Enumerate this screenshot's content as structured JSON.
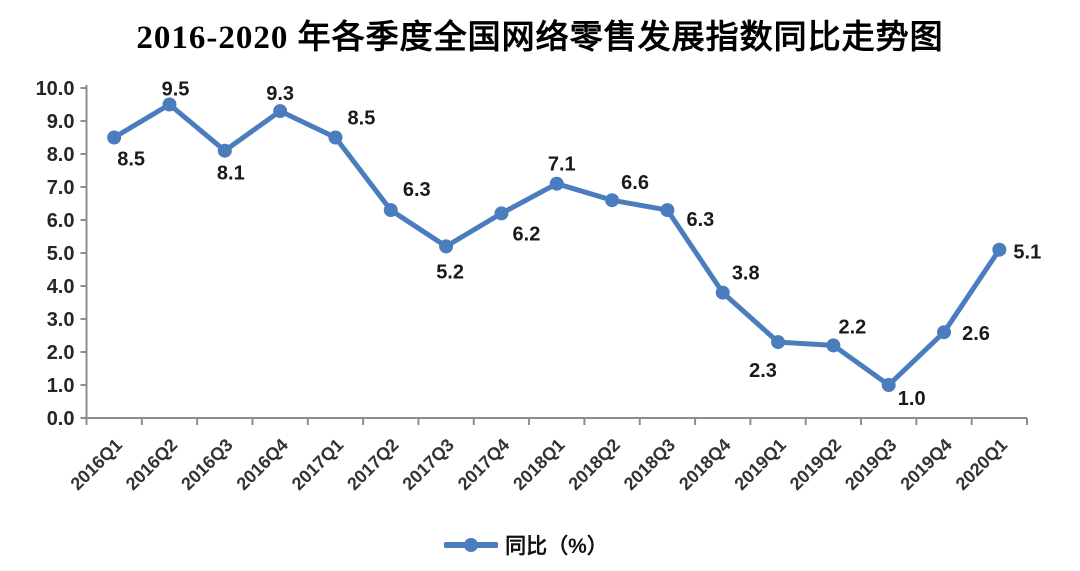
{
  "chart_data": {
    "type": "line",
    "title": "2016-2020 年各季度全国网络零售发展指数同比走势图",
    "categories": [
      "2016Q1",
      "2016Q2",
      "2016Q3",
      "2016Q4",
      "2017Q1",
      "2017Q2",
      "2017Q3",
      "2017Q4",
      "2018Q1",
      "2018Q2",
      "2018Q3",
      "2018Q4",
      "2019Q1",
      "2019Q2",
      "2019Q3",
      "2019Q4",
      "2020Q1"
    ],
    "series": [
      {
        "name": "同比（%）",
        "values": [
          8.5,
          9.5,
          8.1,
          9.3,
          8.5,
          6.3,
          5.2,
          6.2,
          7.1,
          6.6,
          6.3,
          3.8,
          2.3,
          2.2,
          1.0,
          2.6,
          5.1
        ],
        "color": "#4B7DBE"
      }
    ],
    "xlabel": "",
    "ylabel": "",
    "ylim": [
      0,
      10
    ],
    "y_tick_step": 1.0,
    "y_tick_labels": [
      "0.0",
      "1.0",
      "2.0",
      "3.0",
      "4.0",
      "5.0",
      "6.0",
      "7.0",
      "8.0",
      "9.0",
      "10.0"
    ],
    "grid": false,
    "legend_position": "bottom",
    "data_labels_shown": true,
    "colors": {
      "axis": "#8C8C8C",
      "y_tick_label": "#262626",
      "x_tick_label": "#333333",
      "data_label": "#1A1A1A",
      "background": "#FFFFFF"
    }
  }
}
